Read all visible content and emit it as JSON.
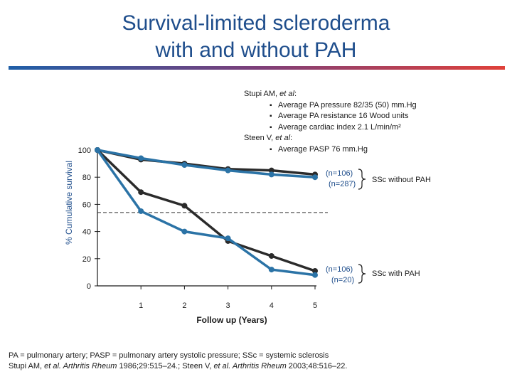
{
  "header": {
    "title_line1": "Survival-limited scleroderma",
    "title_line2": "with and without PAH"
  },
  "references": {
    "stupi_author": "Stupi AM, ",
    "stupi_etal": "et al",
    "stupi_colon": ":",
    "stupi_points": [
      "Average PA pressure 82/35 (50) mm.Hg",
      "Average PA resistance 16 Wood units",
      "Average cardiac index 2.1 L/min/m²"
    ],
    "steen_author": "Steen V, ",
    "steen_etal": "et al",
    "steen_colon": ":",
    "steen_points": [
      "Average PASP 76 mm.Hg"
    ]
  },
  "footer": {
    "line1": "PA  = pulmonary artery; PASP = pulmonary artery systolic pressure; SSc = systemic sclerosis",
    "line2": [
      {
        "text": "Stupi AM, ",
        "italic": false
      },
      {
        "text": "et al. Arthritis Rheum ",
        "italic": true
      },
      {
        "text": "1986;29:515–24.; Steen V, ",
        "italic": false
      },
      {
        "text": "et al. Arthritis Rheum ",
        "italic": true
      },
      {
        "text": "2003;48:516–22.",
        "italic": false
      }
    ]
  },
  "chart_data": {
    "type": "line",
    "title": "",
    "xlabel": "Follow up (Years)",
    "ylabel": "% Cumulative survival",
    "xlim": [
      0,
      5
    ],
    "ylim": [
      0,
      100
    ],
    "xticks": [
      1,
      2,
      3,
      4,
      5
    ],
    "yticks": [
      0,
      20,
      40,
      60,
      80,
      100
    ],
    "reference_line_y": 54,
    "series": [
      {
        "name": "n=106",
        "group": "SSc without PAH",
        "color": "#2b2b2b",
        "x": [
          0,
          1,
          2,
          3,
          4,
          5
        ],
        "y": [
          100,
          93,
          90,
          86,
          85,
          82
        ]
      },
      {
        "name": "n=287",
        "group": "SSc without PAH",
        "color": "#2b73a6",
        "x": [
          0,
          1,
          2,
          3,
          4,
          5
        ],
        "y": [
          100,
          94,
          89,
          85,
          82,
          80
        ]
      },
      {
        "name": "n=106",
        "group": "SSc with PAH",
        "color": "#2b2b2b",
        "x": [
          0,
          1,
          2,
          3,
          4,
          5
        ],
        "y": [
          100,
          69,
          59,
          33,
          22,
          11
        ]
      },
      {
        "name": "n=20",
        "group": "SSc with PAH",
        "color": "#2b73a6",
        "x": [
          0,
          1,
          2,
          3,
          4,
          5
        ],
        "y": [
          100,
          55,
          40,
          35,
          12,
          8
        ]
      }
    ],
    "annotations": [
      {
        "label": "(n=106)",
        "near_series": 0
      },
      {
        "label": "(n=287)",
        "near_series": 1
      },
      {
        "label": "SSc without PAH",
        "bracket": [
          0,
          1
        ]
      },
      {
        "label": "(n=106)",
        "near_series": 2
      },
      {
        "label": "(n=20)",
        "near_series": 3
      },
      {
        "label": "SSc with PAH",
        "bracket": [
          2,
          3
        ]
      }
    ]
  }
}
